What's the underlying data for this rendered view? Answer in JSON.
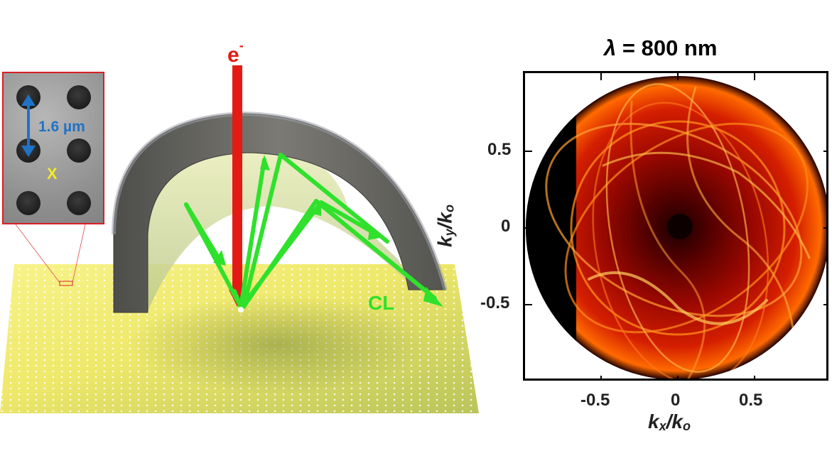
{
  "figure": {
    "left": {
      "beam_label": "e",
      "beam_superscript": "-",
      "emission_label": "CL",
      "inset": {
        "scale_text": "1.6 µm",
        "center_mark": "X"
      },
      "colors": {
        "electron_beam": "#e31b14",
        "emission_rays": "#2fe12b",
        "sample_surface": "#f0e95a",
        "mirror": "#6a6a66",
        "inset_border": "#d81f26",
        "scale_arrow": "#1f73c7",
        "center_mark": "#f2ea21"
      }
    },
    "right": {
      "title_lambda": "λ",
      "title_value": "= 800 nm",
      "x_ticks": [
        "-0.5",
        "0",
        "0.5"
      ],
      "y_ticks": [
        "0.5",
        "0",
        "-0.5"
      ],
      "x_label": {
        "k": "k",
        "sub_x": "x",
        "slash": "/",
        "k2": "k",
        "sub_0": "o"
      },
      "y_label": {
        "k": "k",
        "sub_y": "y",
        "slash": "/",
        "k2": "k",
        "sub_0": "o"
      }
    }
  },
  "chart_data": {
    "type": "heatmap",
    "title": "λ = 800 nm",
    "xlabel": "kx/ko",
    "ylabel": "ky/ko",
    "xlim": [
      -1,
      1
    ],
    "ylim": [
      -1,
      1
    ],
    "x_ticks": [
      -0.5,
      0,
      0.5
    ],
    "y_ticks": [
      -0.5,
      0,
      0.5
    ],
    "colormap": [
      "#000000",
      "#7d0000",
      "#e02000",
      "#ff8a00",
      "#ffe070"
    ],
    "grid": false
  }
}
